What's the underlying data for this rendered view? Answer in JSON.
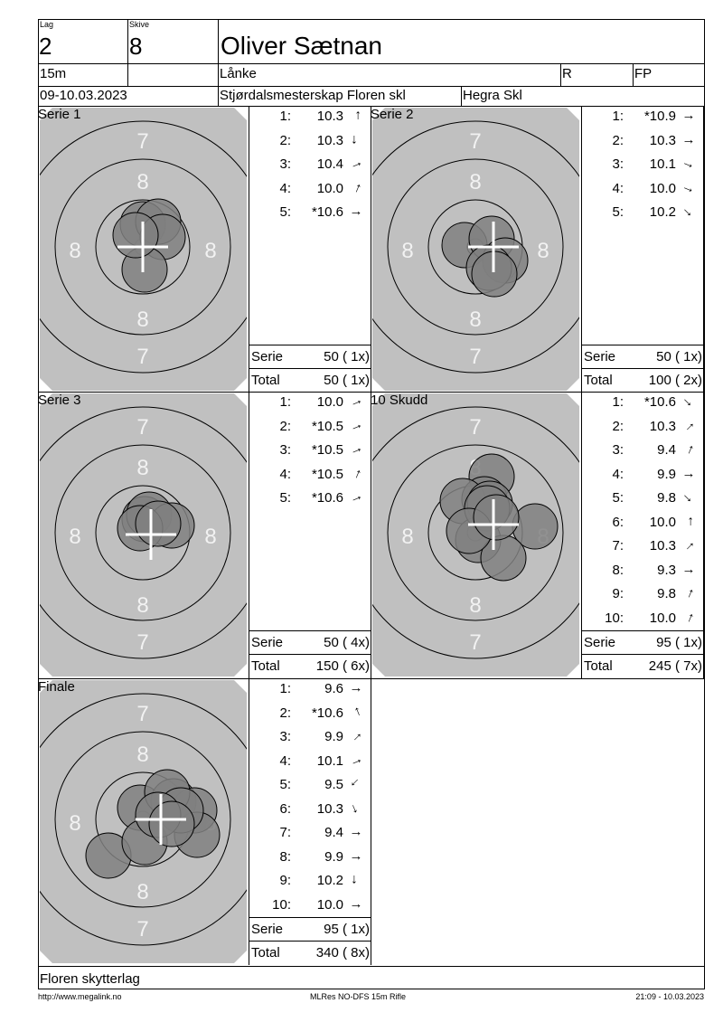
{
  "header": {
    "lag_label": "Lag",
    "lag": "2",
    "skive_label": "Skive",
    "skive": "8",
    "name": "Oliver Sætnan",
    "distance": "15m",
    "weapon": "Lånke",
    "class_r": "R",
    "class_fp": "FP",
    "date": "09-10.03.2023",
    "event": "Stjørdalsmesterskap Floren skl",
    "club": "Hegra Skl"
  },
  "colors": {
    "target": "#c0c0c0",
    "hit": "#808080",
    "ring": "#000000",
    "ring_numbers": "#f2f2f2",
    "mpi_cross": "#ffffff"
  },
  "panels": [
    {
      "title": "Serie 1",
      "shots": [
        {
          "n": "1:",
          "v": "10.3",
          "dir": "N"
        },
        {
          "n": "2:",
          "v": "10.3",
          "dir": "S"
        },
        {
          "n": "3:",
          "v": "10.4",
          "dir": "ENE"
        },
        {
          "n": "4:",
          "v": "10.0",
          "dir": "NNE"
        },
        {
          "n": "5:",
          "v": "*10.6",
          "dir": "E"
        }
      ],
      "serie_label": "Serie",
      "serie": "50 ( 1x)",
      "total_label": "Total",
      "total": "50 ( 1x)"
    },
    {
      "title": "Serie 2",
      "shots": [
        {
          "n": "1:",
          "v": "*10.9",
          "dir": "E"
        },
        {
          "n": "2:",
          "v": "10.3",
          "dir": "E"
        },
        {
          "n": "3:",
          "v": "10.1",
          "dir": "ESE"
        },
        {
          "n": "4:",
          "v": "10.0",
          "dir": "ESE"
        },
        {
          "n": "5:",
          "v": "10.2",
          "dir": "SE"
        }
      ],
      "serie_label": "Serie",
      "serie": "50 ( 1x)",
      "total_label": "Total",
      "total": "100 ( 2x)"
    },
    {
      "title": "Serie 3",
      "shots": [
        {
          "n": "1:",
          "v": "10.0",
          "dir": "ENE"
        },
        {
          "n": "2:",
          "v": "*10.5",
          "dir": "ENE"
        },
        {
          "n": "3:",
          "v": "*10.5",
          "dir": "ENE"
        },
        {
          "n": "4:",
          "v": "*10.5",
          "dir": "NNE"
        },
        {
          "n": "5:",
          "v": "*10.6",
          "dir": "ENE"
        }
      ],
      "serie_label": "Serie",
      "serie": "50 ( 4x)",
      "total_label": "Total",
      "total": "150 ( 6x)"
    },
    {
      "title": "10 Skudd",
      "shots": [
        {
          "n": "1:",
          "v": "*10.6",
          "dir": "SE"
        },
        {
          "n": "2:",
          "v": "10.3",
          "dir": "NE"
        },
        {
          "n": "3:",
          "v": "9.4",
          "dir": "NNE"
        },
        {
          "n": "4:",
          "v": "9.9",
          "dir": "E"
        },
        {
          "n": "5:",
          "v": "9.8",
          "dir": "SE"
        },
        {
          "n": "6:",
          "v": "10.0",
          "dir": "N"
        },
        {
          "n": "7:",
          "v": "10.3",
          "dir": "NE"
        },
        {
          "n": "8:",
          "v": "9.3",
          "dir": "E"
        },
        {
          "n": "9:",
          "v": "9.8",
          "dir": "NNE"
        },
        {
          "n": "10:",
          "v": "10.0",
          "dir": "NNE"
        }
      ],
      "serie_label": "Serie",
      "serie": "95 ( 1x)",
      "total_label": "Total",
      "total": "245 ( 7x)"
    },
    {
      "title": "Finale",
      "shots": [
        {
          "n": "1:",
          "v": "9.6",
          "dir": "E"
        },
        {
          "n": "2:",
          "v": "*10.6",
          "dir": "NNW"
        },
        {
          "n": "3:",
          "v": "9.9",
          "dir": "NE"
        },
        {
          "n": "4:",
          "v": "10.1",
          "dir": "ENE"
        },
        {
          "n": "5:",
          "v": "9.5",
          "dir": "SW"
        },
        {
          "n": "6:",
          "v": "10.3",
          "dir": "SSE"
        },
        {
          "n": "7:",
          "v": "9.4",
          "dir": "E"
        },
        {
          "n": "8:",
          "v": "9.9",
          "dir": "E"
        },
        {
          "n": "9:",
          "v": "10.2",
          "dir": "S"
        },
        {
          "n": "10:",
          "v": "10.0",
          "dir": "E"
        }
      ],
      "serie_label": "Serie",
      "serie": "95 ( 1x)",
      "total_label": "Total",
      "total": "340 ( 8x)"
    }
  ],
  "ring_labels": {
    "seven": "7",
    "eight": "8"
  },
  "club_footer": "Floren skytterlag",
  "footer": {
    "url": "http://www.megalink.no",
    "software": "MLRes NO-DFS 15m Rifle",
    "printed": "21:09 - 10.03.2023"
  }
}
